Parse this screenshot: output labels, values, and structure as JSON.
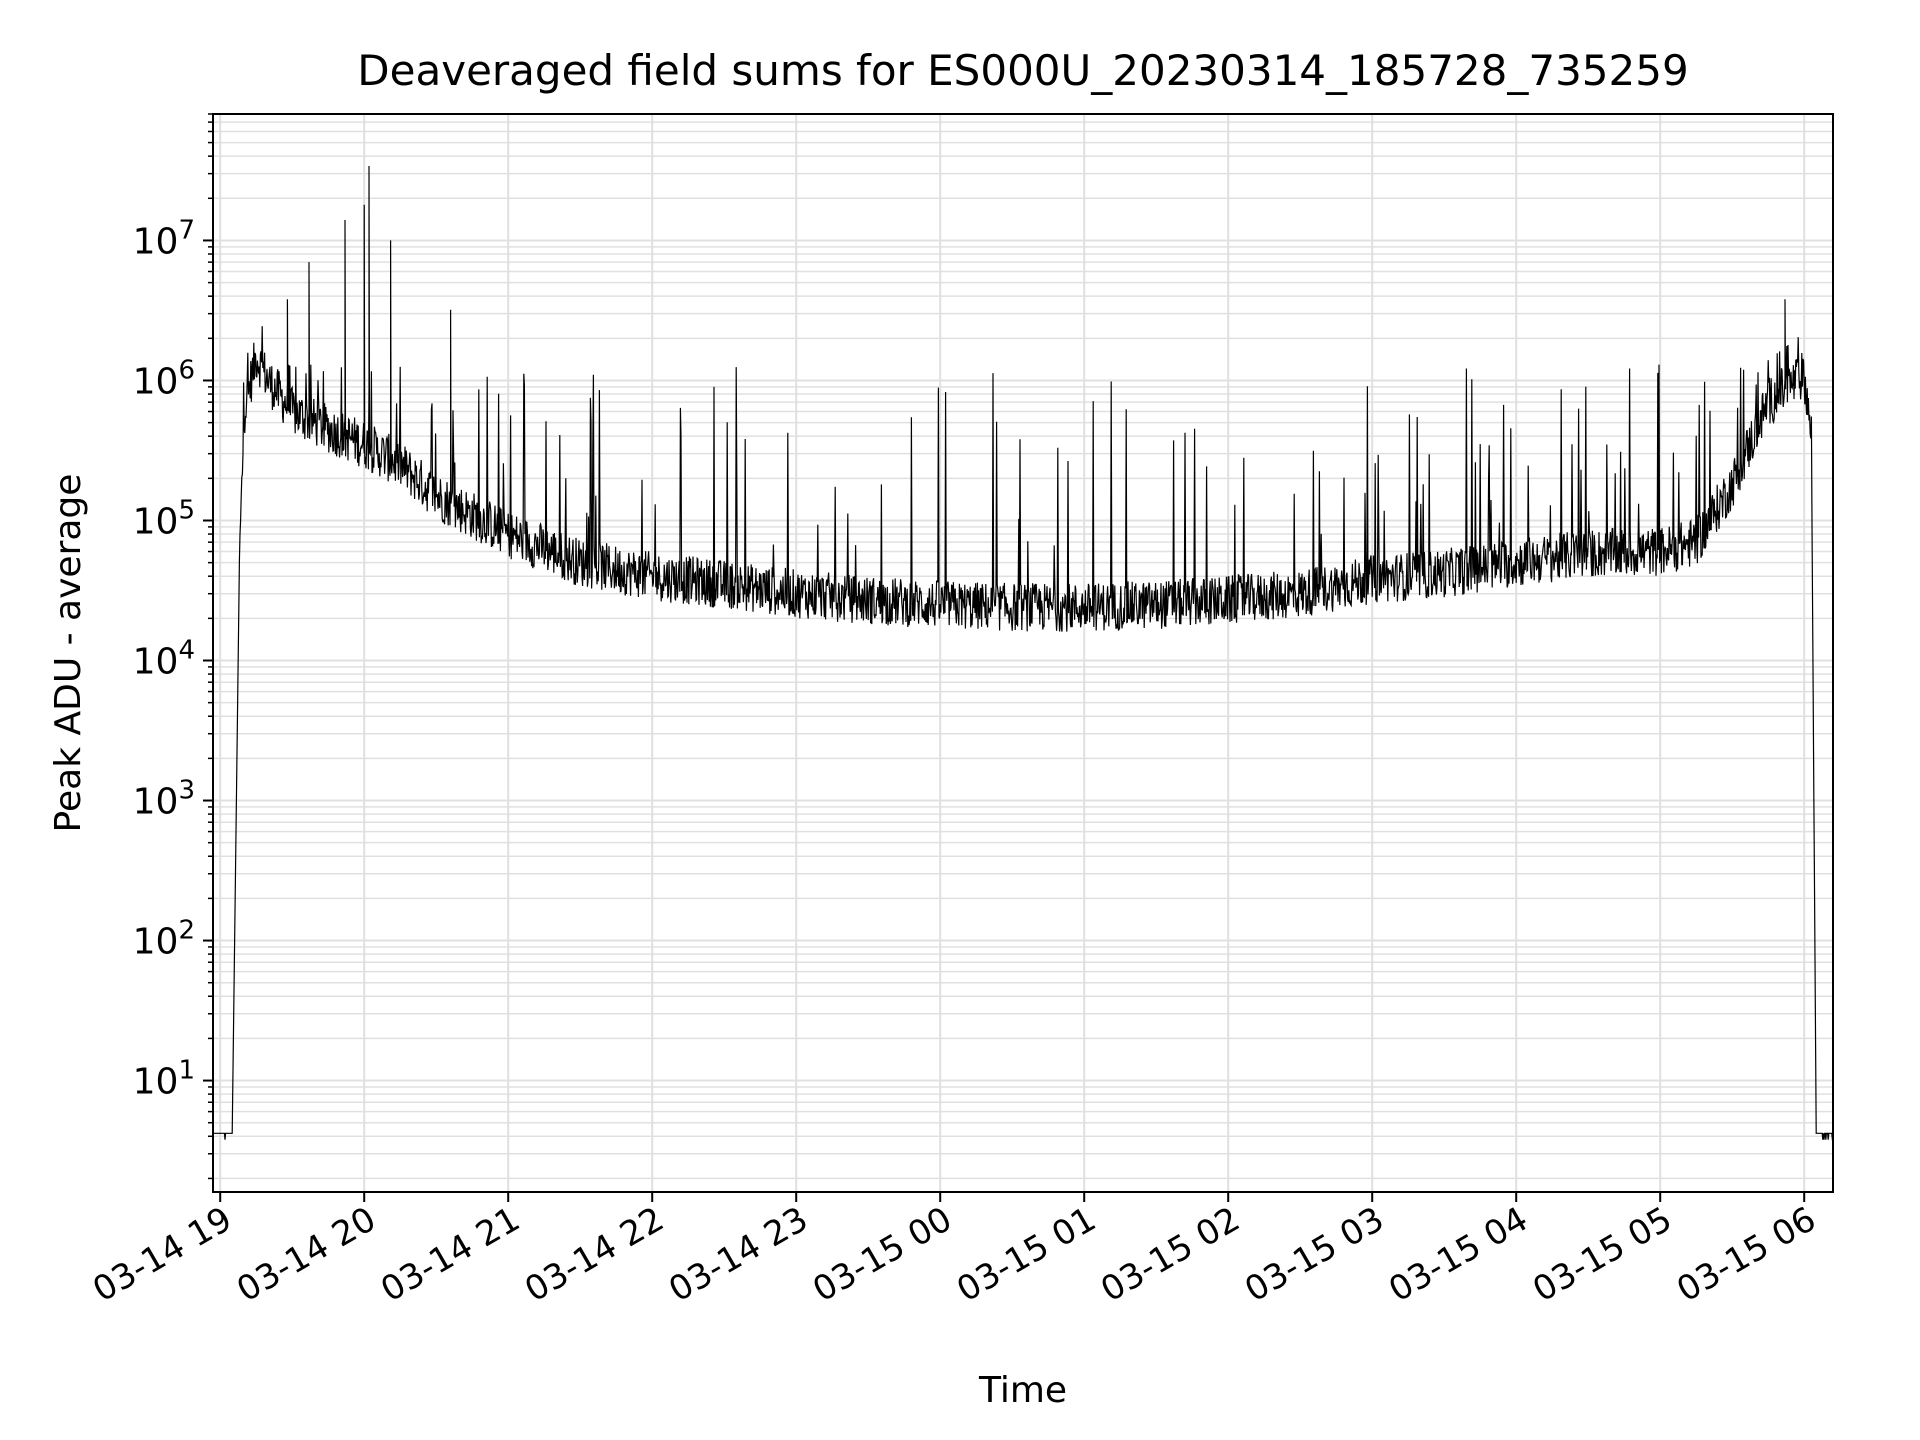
{
  "chart_data": {
    "type": "line",
    "title": "Deaveraged field sums for ES000U_20230314_185728_735259",
    "xlabel": "Time",
    "ylabel": "Peak ADU - average",
    "y_scale": "log",
    "ylim": [
      1.6,
      80000000
    ],
    "xlim": [
      "03-14 18:57",
      "03-15 06:12"
    ],
    "grid": true,
    "line_color": "#000000",
    "grid_color": "#e0e0e0",
    "x_ticks": [
      "03-14 19",
      "03-14 20",
      "03-14 21",
      "03-14 22",
      "03-14 23",
      "03-15 00",
      "03-15 01",
      "03-15 02",
      "03-15 03",
      "03-15 04",
      "03-15 05",
      "03-15 06"
    ],
    "y_ticks": [
      {
        "base": "10",
        "exp": "1",
        "value": 10
      },
      {
        "base": "10",
        "exp": "2",
        "value": 100
      },
      {
        "base": "10",
        "exp": "3",
        "value": 1000
      },
      {
        "base": "10",
        "exp": "4",
        "value": 10000
      },
      {
        "base": "10",
        "exp": "5",
        "value": 100000
      },
      {
        "base": "10",
        "exp": "6",
        "value": 1000000
      },
      {
        "base": "10",
        "exp": "7",
        "value": 10000000
      }
    ],
    "series": [
      {
        "x": [
          "03-14 18:57",
          "03-14 19:05",
          "03-14 19:08",
          "03-14 19:10",
          "03-14 19:15",
          "03-14 19:20",
          "03-14 19:30",
          "03-14 19:45",
          "03-14 20:00",
          "03-14 20:15",
          "03-14 20:30",
          "03-14 21:00",
          "03-14 21:30",
          "03-14 22:00",
          "03-14 22:30",
          "03-14 23:00",
          "03-14 23:30",
          "03-15 00:00",
          "03-15 00:30",
          "03-15 01:00",
          "03-15 01:30",
          "03-15 02:00",
          "03-15 02:30",
          "03-15 03:00",
          "03-15 03:30",
          "03-15 04:00",
          "03-15 04:30",
          "03-15 05:00",
          "03-15 05:15",
          "03-15 05:30",
          "03-15 05:45",
          "03-15 06:00",
          "03-15 06:03",
          "03-15 06:05",
          "03-15 06:12"
        ],
        "baseline": [
          4.2,
          4.2,
          50000,
          600000,
          1500000,
          1000000,
          600000,
          450000,
          350000,
          250000,
          150000,
          80000,
          50000,
          40000,
          35000,
          30000,
          27000,
          25000,
          24000,
          24000,
          25000,
          27000,
          30000,
          38000,
          42000,
          50000,
          58000,
          60000,
          70000,
          180000,
          700000,
          1100000,
          400000,
          4.2,
          4.2
        ],
        "peaks": [
          {
            "x": "03-14 19:28",
            "y": 3800000
          },
          {
            "x": "03-14 19:37",
            "y": 7000000
          },
          {
            "x": "03-14 19:52",
            "y": 14000000
          },
          {
            "x": "03-14 20:00",
            "y": 18000000
          },
          {
            "x": "03-14 20:02",
            "y": 34000000
          },
          {
            "x": "03-14 20:11",
            "y": 10000000
          },
          {
            "x": "03-14 20:36",
            "y": 3200000
          },
          {
            "x": "03-15 05:52",
            "y": 3800000
          }
        ],
        "spike_top_max": 1300000
      }
    ]
  }
}
